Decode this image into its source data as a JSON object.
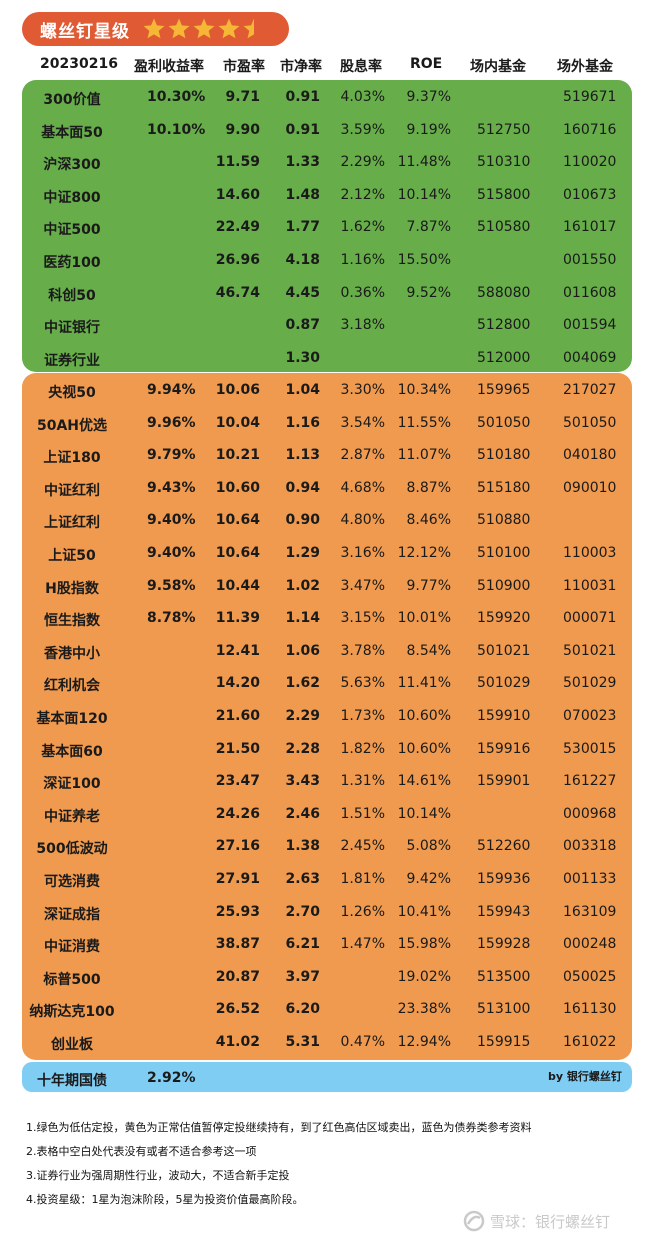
{
  "header": {
    "title": "螺丝钉星级",
    "rating": 4.5,
    "max_rating": 5,
    "star_color": "#f6b737"
  },
  "columns": [
    "20230216",
    "盈利收益率",
    "市盈率",
    "市净率",
    "股息率",
    "ROE",
    "场内基金",
    "场外基金"
  ],
  "colors": {
    "undervalued": "#67ad4a",
    "normal": "#ef9a4f",
    "bond": "#7fcdf3",
    "header": "#e05a33"
  },
  "green_rows": [
    {
      "name": "300价值",
      "ey": "10.30%",
      "pe": "9.71",
      "pb": "0.91",
      "dy": "4.03%",
      "roe": "9.37%",
      "in": "",
      "out": "519671"
    },
    {
      "name": "基本面50",
      "ey": "10.10%",
      "pe": "9.90",
      "pb": "0.91",
      "dy": "3.59%",
      "roe": "9.19%",
      "in": "512750",
      "out": "160716"
    },
    {
      "name": "沪深300",
      "ey": "",
      "pe": "11.59",
      "pb": "1.33",
      "dy": "2.29%",
      "roe": "11.48%",
      "in": "510310",
      "out": "110020"
    },
    {
      "name": "中证800",
      "ey": "",
      "pe": "14.60",
      "pb": "1.48",
      "dy": "2.12%",
      "roe": "10.14%",
      "in": "515800",
      "out": "010673"
    },
    {
      "name": "中证500",
      "ey": "",
      "pe": "22.49",
      "pb": "1.77",
      "dy": "1.62%",
      "roe": "7.87%",
      "in": "510580",
      "out": "161017"
    },
    {
      "name": "医药100",
      "ey": "",
      "pe": "26.96",
      "pb": "4.18",
      "dy": "1.16%",
      "roe": "15.50%",
      "in": "",
      "out": "001550"
    },
    {
      "name": "科创50",
      "ey": "",
      "pe": "46.74",
      "pb": "4.45",
      "dy": "0.36%",
      "roe": "9.52%",
      "in": "588080",
      "out": "011608"
    },
    {
      "name": "中证银行",
      "ey": "",
      "pe": "",
      "pb": "0.87",
      "dy": "3.18%",
      "roe": "",
      "in": "512800",
      "out": "001594"
    },
    {
      "name": "证券行业",
      "ey": "",
      "pe": "",
      "pb": "1.30",
      "dy": "",
      "roe": "",
      "in": "512000",
      "out": "004069"
    }
  ],
  "orange_rows": [
    {
      "name": "央视50",
      "ey": "9.94%",
      "pe": "10.06",
      "pb": "1.04",
      "dy": "3.30%",
      "roe": "10.34%",
      "in": "159965",
      "out": "217027"
    },
    {
      "name": "50AH优选",
      "ey": "9.96%",
      "pe": "10.04",
      "pb": "1.16",
      "dy": "3.54%",
      "roe": "11.55%",
      "in": "501050",
      "out": "501050"
    },
    {
      "name": "上证180",
      "ey": "9.79%",
      "pe": "10.21",
      "pb": "1.13",
      "dy": "2.87%",
      "roe": "11.07%",
      "in": "510180",
      "out": "040180"
    },
    {
      "name": "中证红利",
      "ey": "9.43%",
      "pe": "10.60",
      "pb": "0.94",
      "dy": "4.68%",
      "roe": "8.87%",
      "in": "515180",
      "out": "090010"
    },
    {
      "name": "上证红利",
      "ey": "9.40%",
      "pe": "10.64",
      "pb": "0.90",
      "dy": "4.80%",
      "roe": "8.46%",
      "in": "510880",
      "out": ""
    },
    {
      "name": "上证50",
      "ey": "9.40%",
      "pe": "10.64",
      "pb": "1.29",
      "dy": "3.16%",
      "roe": "12.12%",
      "in": "510100",
      "out": "110003"
    },
    {
      "name": "H股指数",
      "ey": "9.58%",
      "pe": "10.44",
      "pb": "1.02",
      "dy": "3.47%",
      "roe": "9.77%",
      "in": "510900",
      "out": "110031"
    },
    {
      "name": "恒生指数",
      "ey": "8.78%",
      "pe": "11.39",
      "pb": "1.14",
      "dy": "3.15%",
      "roe": "10.01%",
      "in": "159920",
      "out": "000071"
    },
    {
      "name": "香港中小",
      "ey": "",
      "pe": "12.41",
      "pb": "1.06",
      "dy": "3.78%",
      "roe": "8.54%",
      "in": "501021",
      "out": "501021"
    },
    {
      "name": "红利机会",
      "ey": "",
      "pe": "14.20",
      "pb": "1.62",
      "dy": "5.63%",
      "roe": "11.41%",
      "in": "501029",
      "out": "501029"
    },
    {
      "name": "基本面120",
      "ey": "",
      "pe": "21.60",
      "pb": "2.29",
      "dy": "1.73%",
      "roe": "10.60%",
      "in": "159910",
      "out": "070023"
    },
    {
      "name": "基本面60",
      "ey": "",
      "pe": "21.50",
      "pb": "2.28",
      "dy": "1.82%",
      "roe": "10.60%",
      "in": "159916",
      "out": "530015"
    },
    {
      "name": "深证100",
      "ey": "",
      "pe": "23.47",
      "pb": "3.43",
      "dy": "1.31%",
      "roe": "14.61%",
      "in": "159901",
      "out": "161227"
    },
    {
      "name": "中证养老",
      "ey": "",
      "pe": "24.26",
      "pb": "2.46",
      "dy": "1.51%",
      "roe": "10.14%",
      "in": "",
      "out": "000968"
    },
    {
      "name": "500低波动",
      "ey": "",
      "pe": "27.16",
      "pb": "1.38",
      "dy": "2.45%",
      "roe": "5.08%",
      "in": "512260",
      "out": "003318"
    },
    {
      "name": "可选消费",
      "ey": "",
      "pe": "27.91",
      "pb": "2.63",
      "dy": "1.81%",
      "roe": "9.42%",
      "in": "159936",
      "out": "001133"
    },
    {
      "name": "深证成指",
      "ey": "",
      "pe": "25.93",
      "pb": "2.70",
      "dy": "1.26%",
      "roe": "10.41%",
      "in": "159943",
      "out": "163109"
    },
    {
      "name": "中证消费",
      "ey": "",
      "pe": "38.87",
      "pb": "6.21",
      "dy": "1.47%",
      "roe": "15.98%",
      "in": "159928",
      "out": "000248"
    },
    {
      "name": "标普500",
      "ey": "",
      "pe": "20.87",
      "pb": "3.97",
      "dy": "",
      "roe": "19.02%",
      "in": "513500",
      "out": "050025"
    },
    {
      "name": "纳斯达克100",
      "ey": "",
      "pe": "26.52",
      "pb": "6.20",
      "dy": "",
      "roe": "23.38%",
      "in": "513100",
      "out": "161130"
    },
    {
      "name": "创业板",
      "ey": "",
      "pe": "41.02",
      "pb": "5.31",
      "dy": "0.47%",
      "roe": "12.94%",
      "in": "159915",
      "out": "161022"
    }
  ],
  "bond_row": {
    "name": "十年期国债",
    "ey": "2.92%",
    "credit": "by 银行螺丝钉"
  },
  "notes": [
    "1.绿色为低估定投，黄色为正常估值暂停定投继续持有，到了红色高估区域卖出，蓝色为债券类参考资料",
    "2.表格中空白处代表没有或者不适合参考这一项",
    "3.证券行业为强周期性行业，波动大，不适合新手定投",
    "4.投资星级：1星为泡沫阶段，5星为投资价值最高阶段。"
  ],
  "watermark": "雪球：银行螺丝钉"
}
